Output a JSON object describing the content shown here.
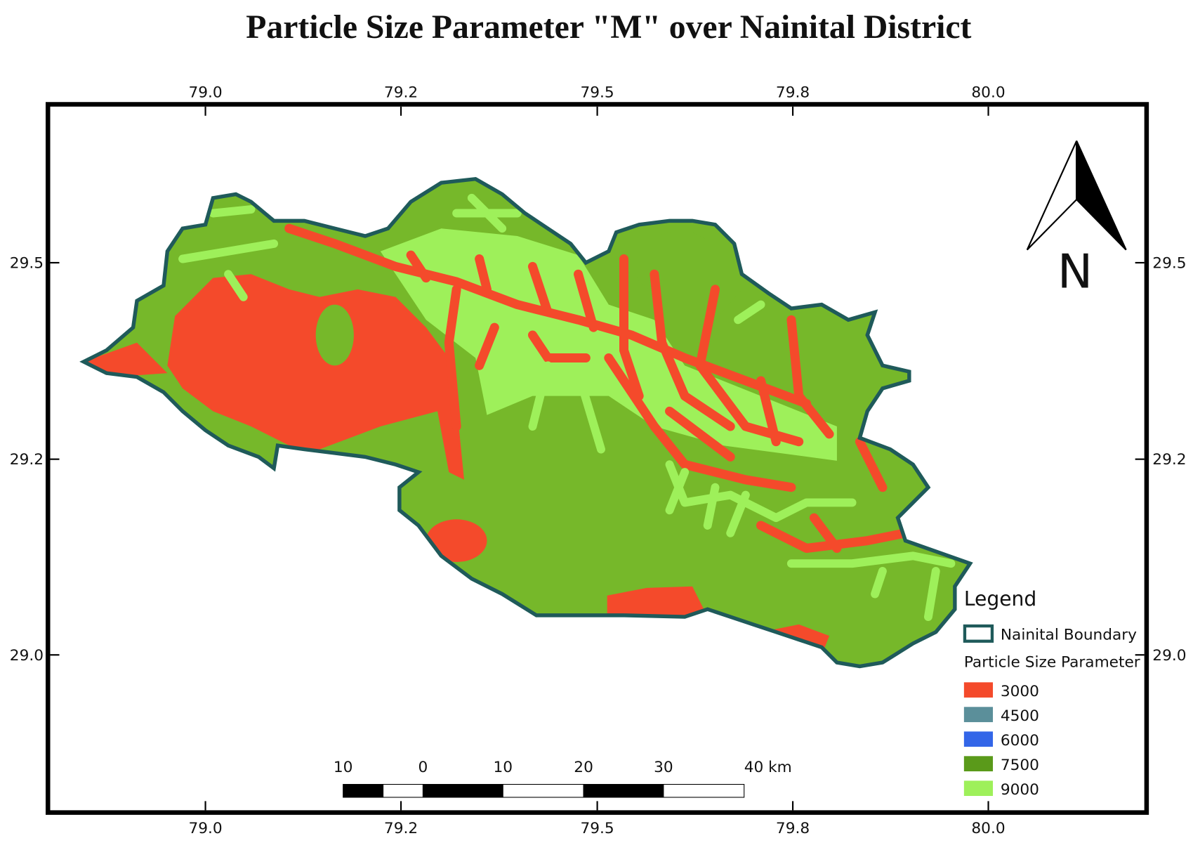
{
  "title": "Particle Size Parameter \"M\" over Nainital District",
  "axes": {
    "top": [
      "79.0",
      "79.2",
      "79.5",
      "79.8",
      "80.0"
    ],
    "bottom": [
      "79.0",
      "79.2",
      "79.5",
      "79.8",
      "80.0"
    ],
    "left": [
      "29.5",
      "29.2",
      "29.0"
    ],
    "right": [
      "29.5",
      "29.2",
      "29.0"
    ]
  },
  "north_arrow": {
    "label": "N"
  },
  "legend": {
    "title": "Legend",
    "boundary": {
      "label": "Nainital Boundary",
      "color": "#1f5a5a"
    },
    "parameter_title": "Particle Size Parameter",
    "items": [
      {
        "label": "3000",
        "color": "#f44a2b"
      },
      {
        "label": "4500",
        "color": "#5b8f9a"
      },
      {
        "label": "6000",
        "color": "#3366e8"
      },
      {
        "label": "7500",
        "color": "#5a9a1a"
      },
      {
        "label": "9000",
        "color": "#9ef05a"
      }
    ]
  },
  "scale_bar": {
    "labels": [
      "10",
      "0",
      "10",
      "20",
      "30",
      "40 km"
    ]
  }
}
